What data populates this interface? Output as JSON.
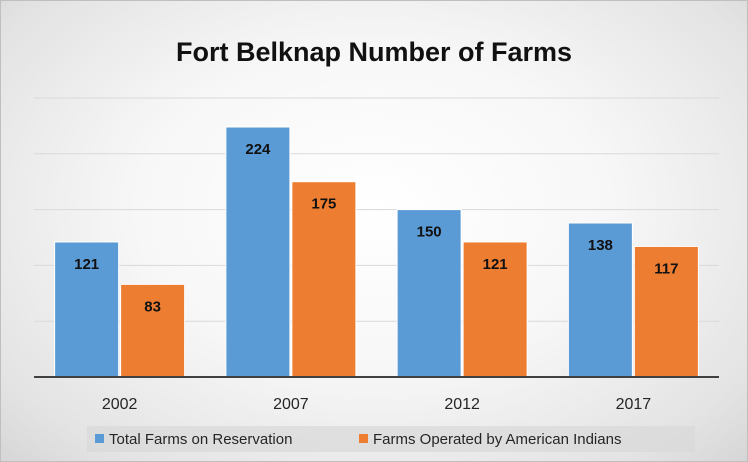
{
  "chart_data": {
    "type": "bar",
    "title": "Fort Belknap Number of Farms",
    "categories": [
      "2002",
      "2007",
      "2012",
      "2017"
    ],
    "series": [
      {
        "name": "Total Farms on Reservation",
        "values": [
          121,
          224,
          150,
          138
        ],
        "color": "#5b9bd5"
      },
      {
        "name": "Farms Operated by American Indians",
        "values": [
          83,
          175,
          121,
          117
        ],
        "color": "#ed7d31"
      }
    ],
    "ylim": [
      0,
      250
    ],
    "grid": true,
    "legend": "bottom",
    "xlabel": "",
    "ylabel": ""
  }
}
